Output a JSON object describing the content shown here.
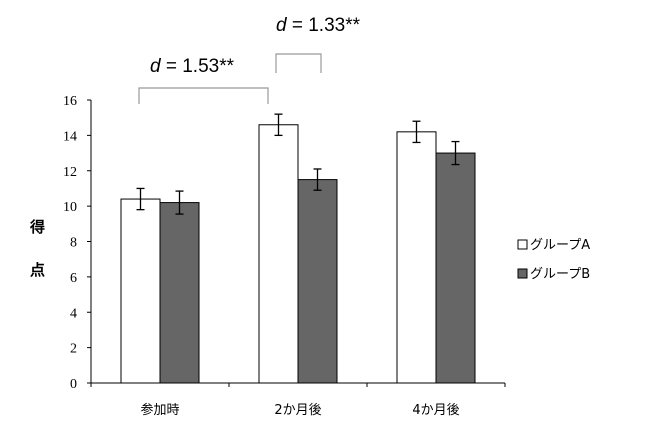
{
  "chart_data": {
    "type": "bar",
    "categories": [
      "参加時",
      "2か月後",
      "4か月後"
    ],
    "series": [
      {
        "name": "グループA",
        "values": [
          10.4,
          14.6,
          14.2
        ],
        "errors": [
          0.6,
          0.6,
          0.6
        ],
        "color": "#ffffff"
      },
      {
        "name": "グループB",
        "values": [
          10.2,
          11.5,
          13.0
        ],
        "errors": [
          0.65,
          0.6,
          0.65
        ],
        "color": "#666666"
      }
    ],
    "ylabel": [
      "得",
      "点"
    ],
    "ylim": [
      0,
      16
    ],
    "yticks": [
      "0",
      "2",
      "4",
      "6",
      "8",
      "10",
      "12",
      "14",
      "16"
    ],
    "grid": false,
    "legend_position": "right",
    "annotations": [
      {
        "d_symbol": "d",
        "text": " = 1.53**"
      },
      {
        "d_symbol": "d",
        "text": " = 1.33**"
      }
    ]
  }
}
